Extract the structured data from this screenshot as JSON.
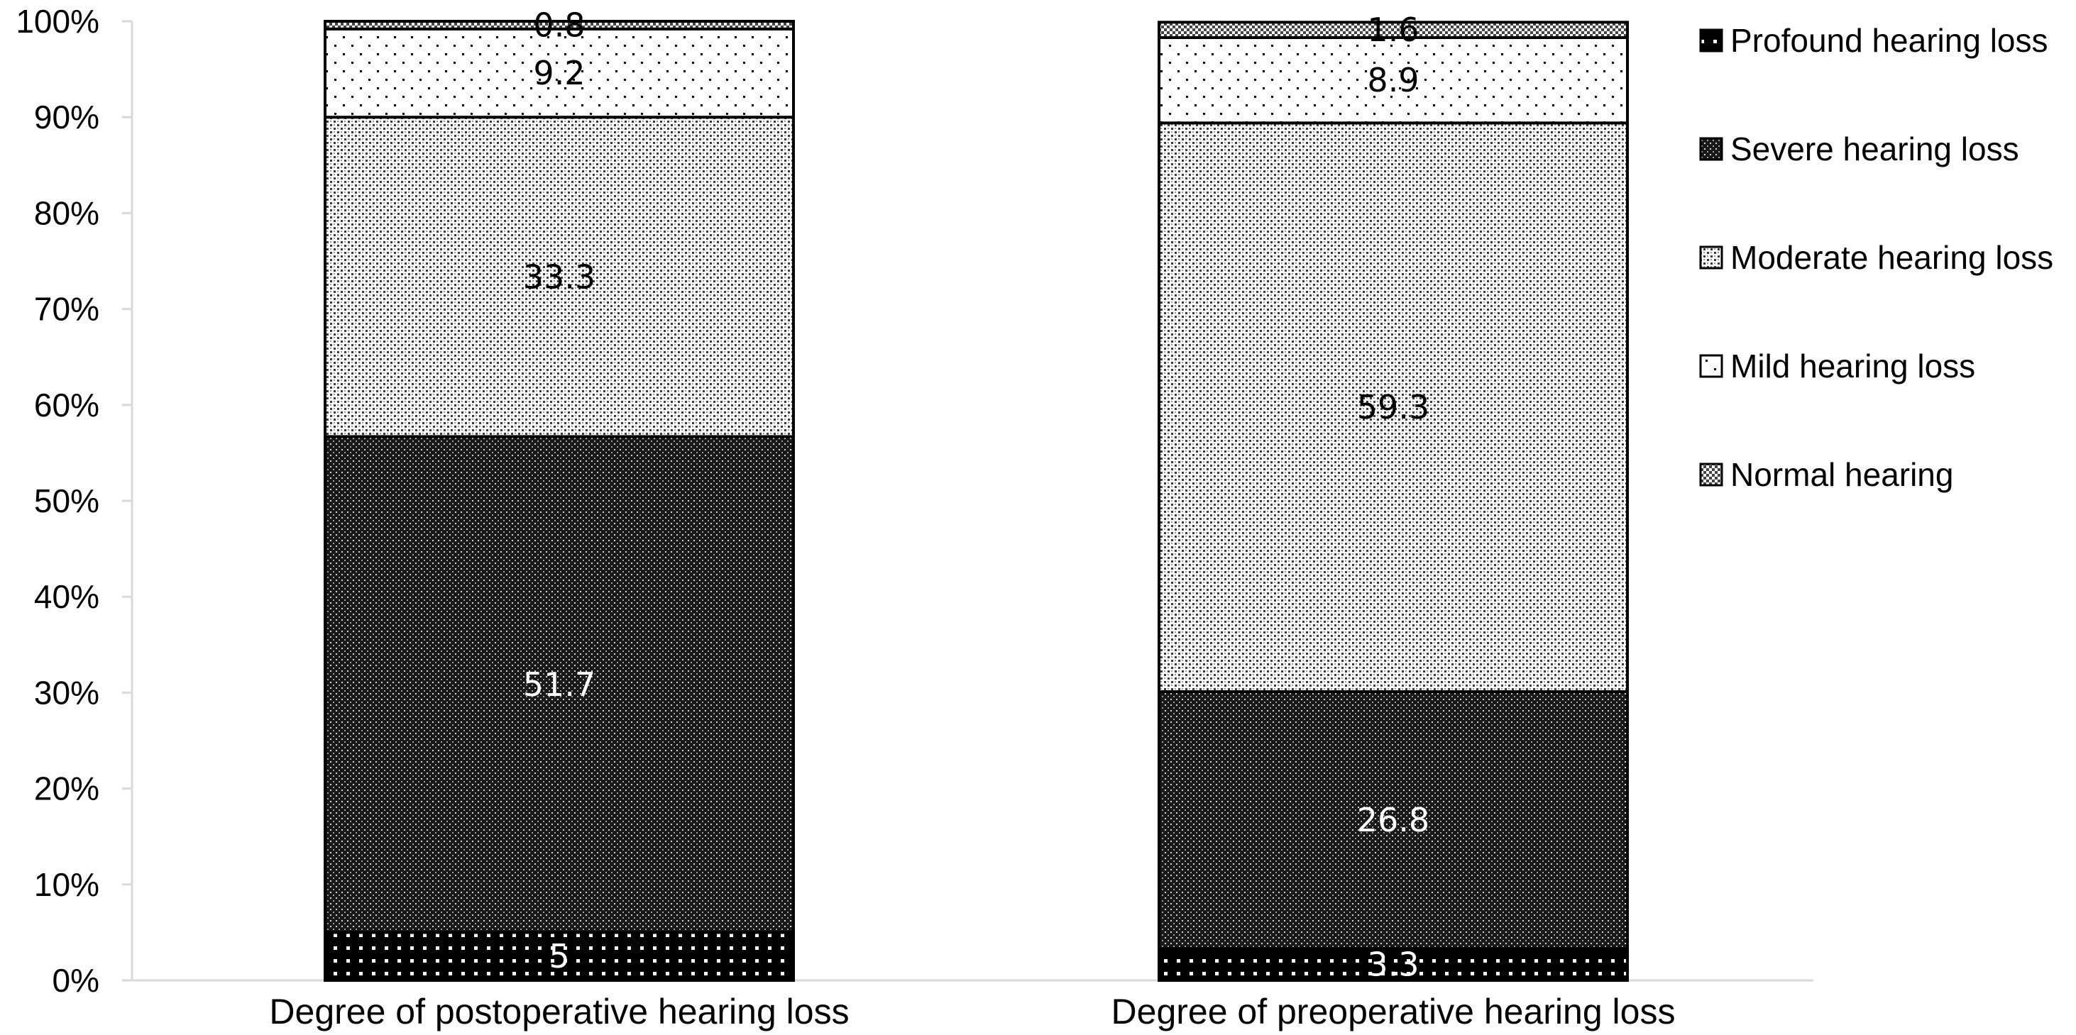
{
  "chart_data": {
    "type": "bar",
    "stacked": true,
    "percent_stacked": true,
    "categories": [
      "Degree of postoperative hearing loss",
      "Degree of preoperative hearing loss"
    ],
    "series": [
      {
        "name": "Profound hearing loss",
        "values": [
          5,
          3.3
        ],
        "labels": [
          "5",
          "3.3"
        ],
        "pattern": "profound",
        "label_color": "#ffffff"
      },
      {
        "name": "Severe hearing loss",
        "values": [
          51.7,
          26.8
        ],
        "labels": [
          "51.7",
          "26.8"
        ],
        "pattern": "severe",
        "label_color": "#ffffff"
      },
      {
        "name": "Moderate hearing loss",
        "values": [
          33.3,
          59.3
        ],
        "labels": [
          "33.3",
          "59.3"
        ],
        "pattern": "moderate",
        "label_color": "#000000"
      },
      {
        "name": "Mild hearing loss",
        "values": [
          9.2,
          8.9
        ],
        "labels": [
          "9.2",
          "8.9"
        ],
        "pattern": "mild",
        "label_color": "#000000"
      },
      {
        "name": "Normal hearing",
        "values": [
          0.8,
          1.6
        ],
        "labels": [
          "0.8",
          "1.6"
        ],
        "pattern": "normal",
        "label_color": "#000000"
      }
    ],
    "y_ticks": [
      "0%",
      "10%",
      "20%",
      "30%",
      "40%",
      "50%",
      "60%",
      "70%",
      "80%",
      "90%",
      "100%"
    ],
    "ylim": [
      0,
      100
    ],
    "legend_order": [
      "Profound hearing loss",
      "Severe hearing loss",
      "Moderate hearing loss",
      "Mild hearing loss",
      "Normal hearing"
    ],
    "legend_position": "right",
    "grid": false
  }
}
